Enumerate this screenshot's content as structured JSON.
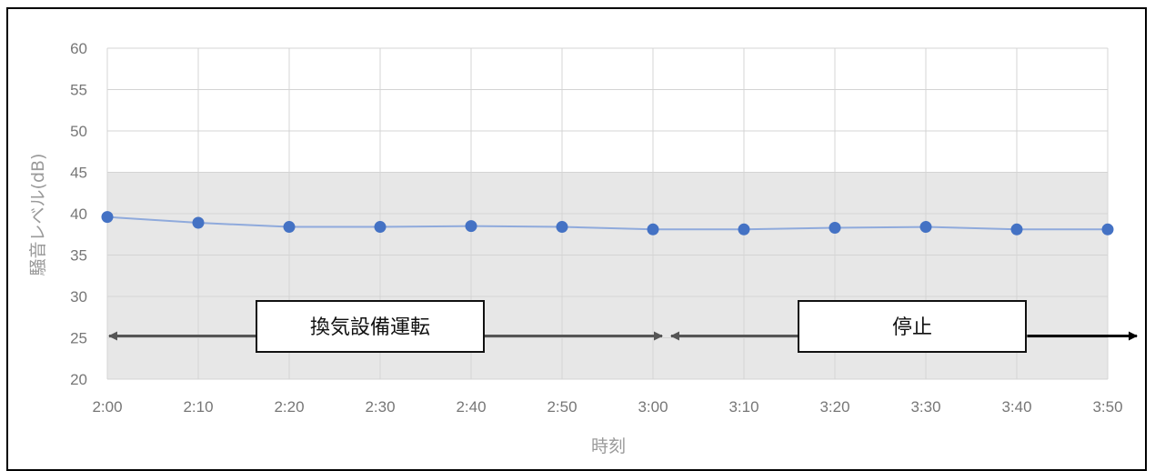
{
  "chart_data": {
    "type": "line",
    "xlabel": "時刻",
    "ylabel": "騒音レベル(dB)",
    "categories": [
      "2:00",
      "2:10",
      "2:20",
      "2:30",
      "2:40",
      "2:50",
      "3:00",
      "3:10",
      "3:20",
      "3:30",
      "3:40",
      "3:50"
    ],
    "series": [
      {
        "values": [
          39.6,
          38.9,
          38.4,
          38.4,
          38.5,
          38.4,
          38.1,
          38.1,
          38.3,
          38.4,
          38.1,
          38.1
        ],
        "color": "#4472c4"
      }
    ],
    "ylim": [
      20,
      60
    ],
    "yticks": [
      20,
      25,
      30,
      35,
      40,
      45,
      50,
      55,
      60
    ],
    "shaded_band": {
      "from": 20,
      "to": 45,
      "color": "#e7e7e7"
    },
    "grid": true,
    "annotations": [
      {
        "label": "換気設備運転",
        "from_category": "2:00",
        "to_category": "3:00",
        "y_value": 25
      },
      {
        "label": "停止",
        "from_category": "3:00",
        "to_category": "3:50",
        "y_value": 25
      }
    ]
  }
}
